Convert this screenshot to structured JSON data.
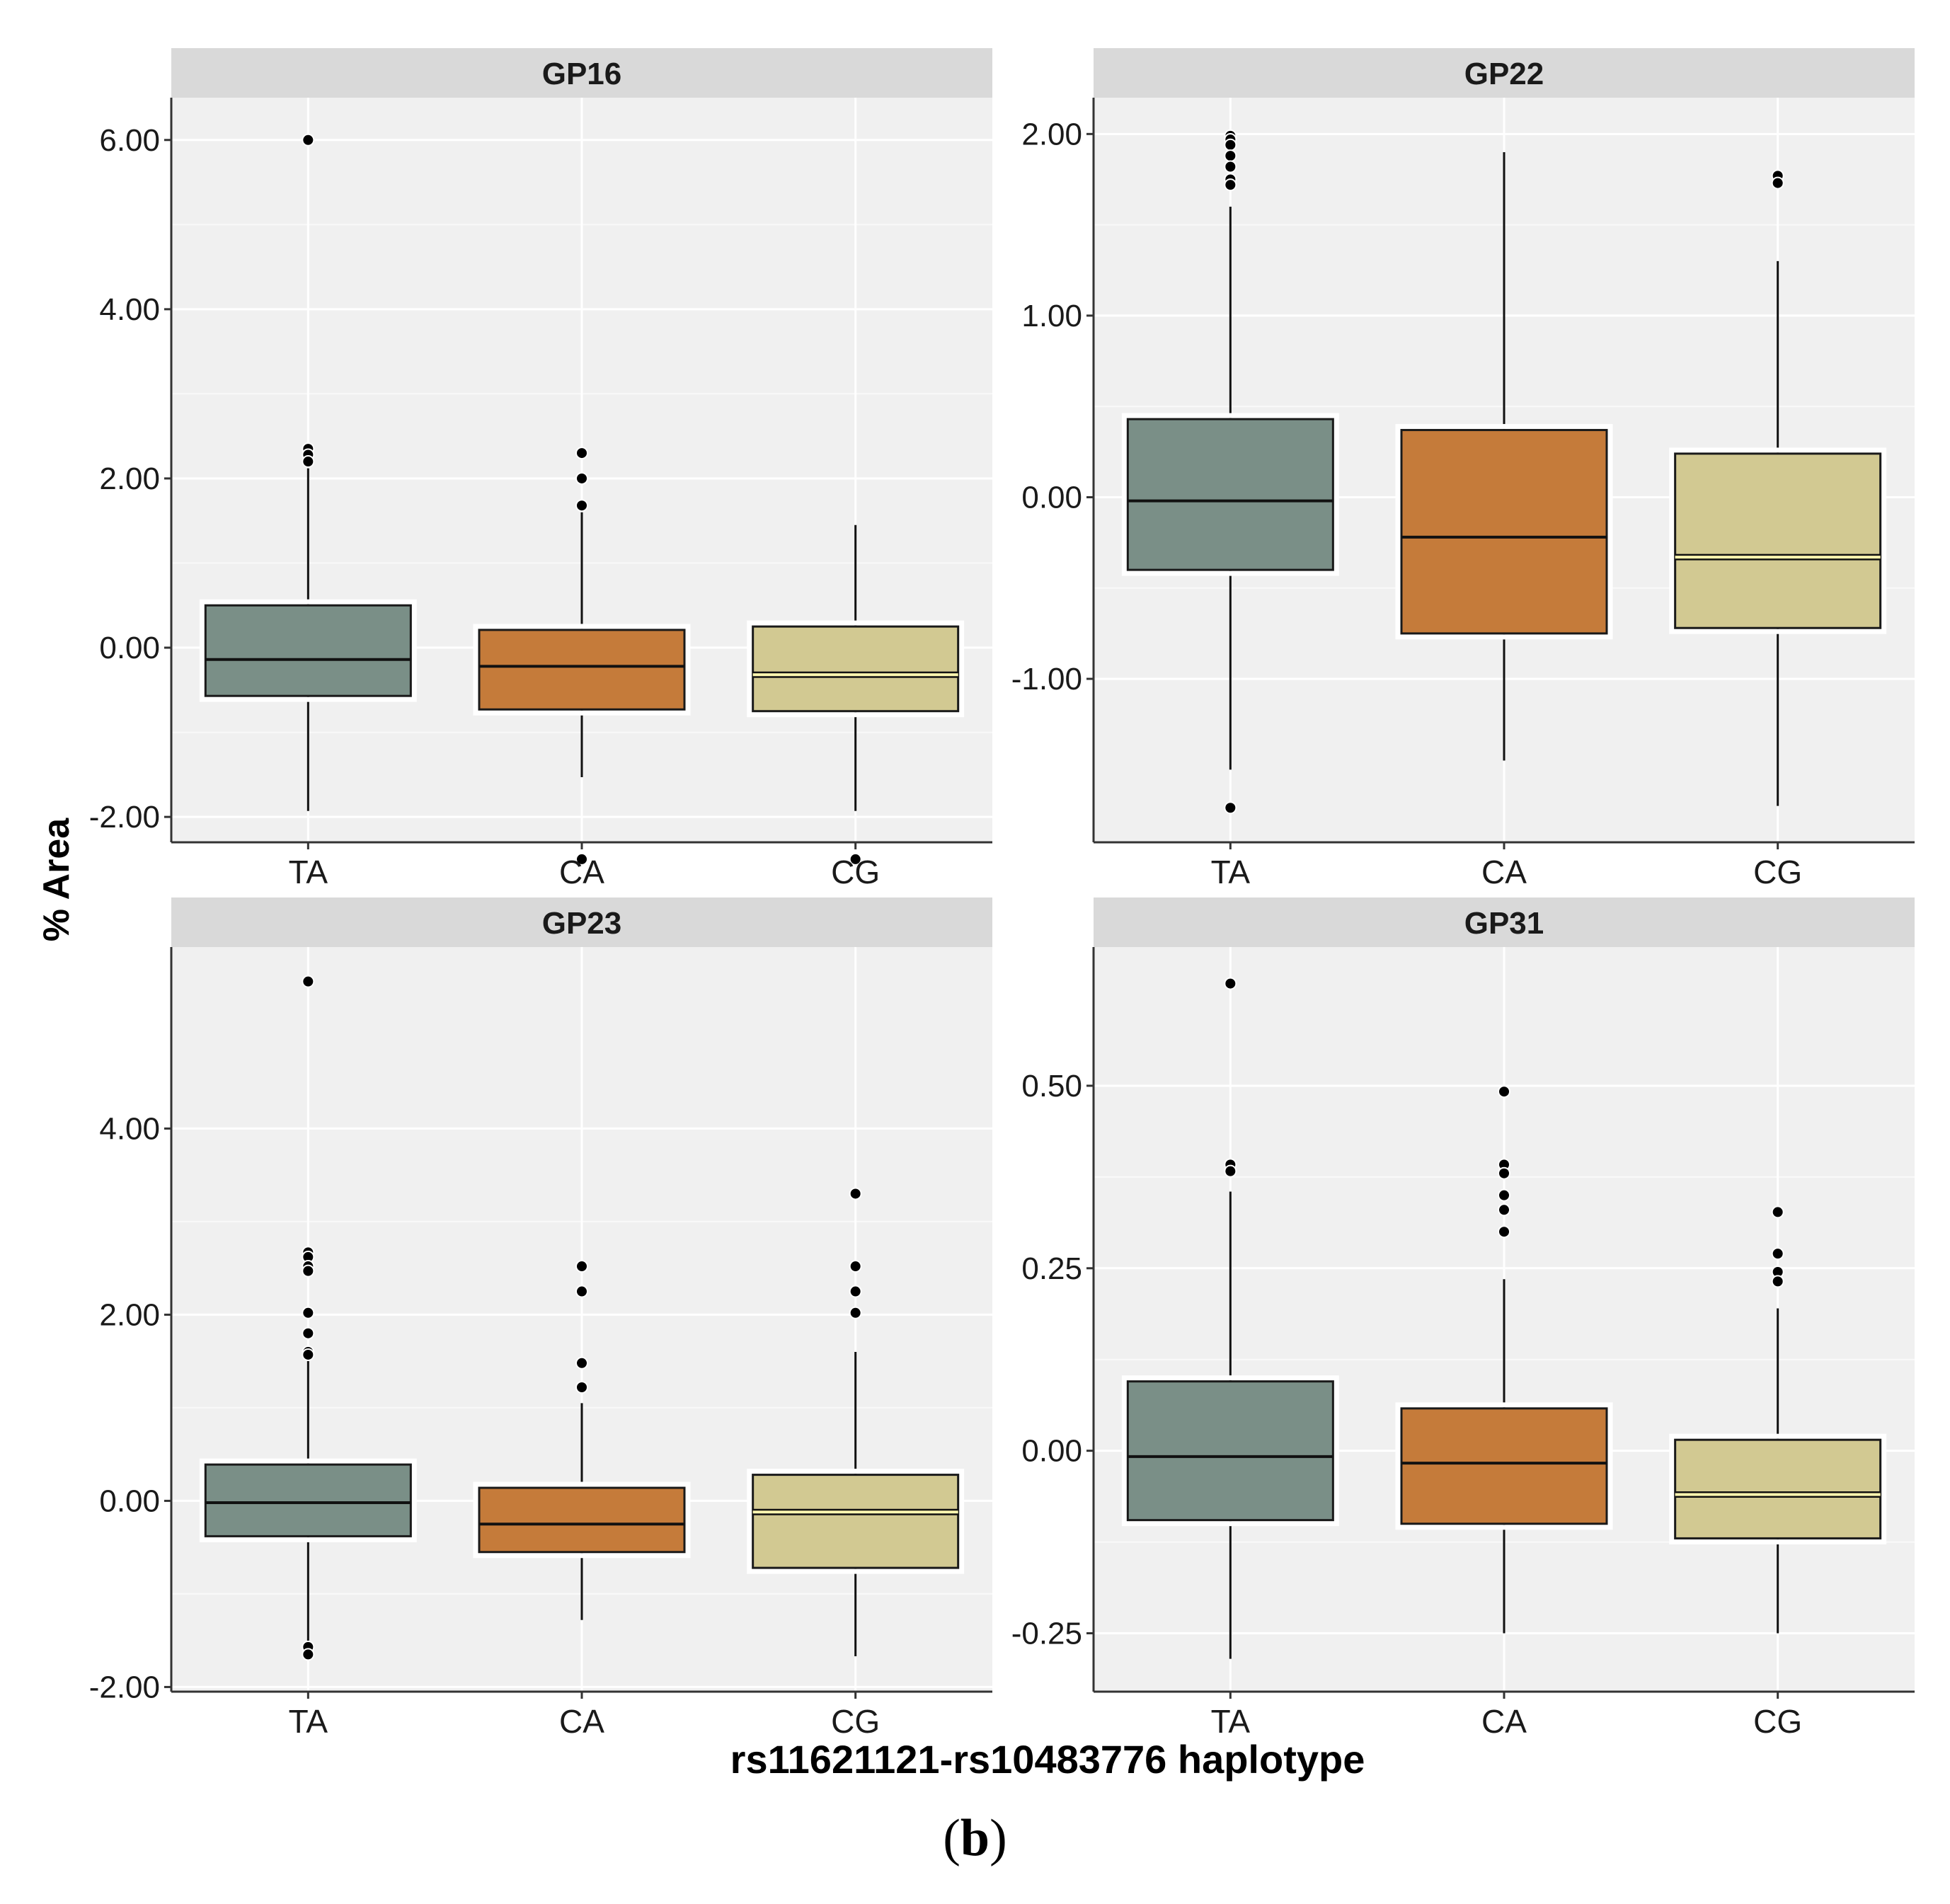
{
  "figure": {
    "ylabel": "% Area",
    "xlabel": "rs11621121-rs10483776 haplotype",
    "label_open": "(",
    "label_letter": "b",
    "label_close": ")"
  },
  "colors": {
    "TA": "#7a8f87",
    "CA": "#c57b3a",
    "CG": "#d2c992",
    "median_TA": "#111111",
    "median_CA": "#111111",
    "median_CG": "#fff7b0"
  },
  "chart_data": [
    {
      "type": "boxplot",
      "title": "GP16",
      "categories": [
        "TA",
        "CA",
        "CG"
      ],
      "ylim": [
        -2.3,
        6.5
      ],
      "yticks": [
        -2,
        0,
        2,
        4,
        6
      ],
      "ytick_labels": [
        "-2.00",
        "0.00",
        "2.00",
        "4.00",
        "6.00"
      ],
      "boxes": [
        {
          "q1": -0.57,
          "median": -0.14,
          "q3": 0.5,
          "whisker_low": -1.93,
          "whisker_high": 2.12,
          "outliers": [
            6.0,
            2.35,
            2.28,
            2.2
          ]
        },
        {
          "q1": -0.73,
          "median": -0.22,
          "q3": 0.21,
          "whisker_low": -1.53,
          "whisker_high": 1.6,
          "outliers": [
            2.3,
            2.0,
            1.68,
            -2.5
          ]
        },
        {
          "q1": -0.75,
          "median": -0.32,
          "q3": 0.25,
          "whisker_low": -1.93,
          "whisker_high": 1.45,
          "outliers": [
            -2.5
          ]
        }
      ]
    },
    {
      "type": "boxplot",
      "title": "GP22",
      "categories": [
        "TA",
        "CA",
        "CG"
      ],
      "ylim": [
        -1.9,
        2.2
      ],
      "yticks": [
        -1,
        0,
        1,
        2
      ],
      "ytick_labels": [
        "-1.00",
        "0.00",
        "1.00",
        "2.00"
      ],
      "boxes": [
        {
          "q1": -0.4,
          "median": -0.02,
          "q3": 0.43,
          "whisker_low": -1.5,
          "whisker_high": 1.6,
          "outliers": [
            1.99,
            1.97,
            1.94,
            1.88,
            1.82,
            1.75,
            1.72,
            -1.71
          ]
        },
        {
          "q1": -0.75,
          "median": -0.22,
          "q3": 0.37,
          "whisker_low": -1.45,
          "whisker_high": 1.9,
          "outliers": []
        },
        {
          "q1": -0.72,
          "median": -0.33,
          "q3": 0.24,
          "whisker_low": -1.7,
          "whisker_high": 1.3,
          "outliers": [
            1.77,
            1.73
          ]
        }
      ]
    },
    {
      "type": "boxplot",
      "title": "GP23",
      "categories": [
        "TA",
        "CA",
        "CG"
      ],
      "ylim": [
        -2.05,
        5.95
      ],
      "yticks": [
        -2,
        0,
        2,
        4
      ],
      "ytick_labels": [
        "-2.00",
        "0.00",
        "2.00",
        "4.00"
      ],
      "boxes": [
        {
          "q1": -0.38,
          "median": -0.02,
          "q3": 0.39,
          "whisker_low": -1.52,
          "whisker_high": 1.52,
          "outliers": [
            5.58,
            2.67,
            2.62,
            2.52,
            2.47,
            2.02,
            1.8,
            1.6,
            1.57,
            -1.57,
            -1.65
          ]
        },
        {
          "q1": -0.55,
          "median": -0.25,
          "q3": 0.14,
          "whisker_low": -1.28,
          "whisker_high": 1.05,
          "outliers": [
            2.52,
            2.25,
            1.48,
            1.22
          ]
        },
        {
          "q1": -0.72,
          "median": -0.12,
          "q3": 0.28,
          "whisker_low": -1.67,
          "whisker_high": 1.6,
          "outliers": [
            3.3,
            2.52,
            2.25,
            2.02
          ]
        }
      ]
    },
    {
      "type": "boxplot",
      "title": "GP31",
      "categories": [
        "TA",
        "CA",
        "CG"
      ],
      "ylim": [
        -0.33,
        0.69
      ],
      "yticks": [
        -0.25,
        0,
        0.25,
        0.5
      ],
      "ytick_labels": [
        "-0.25",
        "0.00",
        "0.25",
        "0.50"
      ],
      "boxes": [
        {
          "q1": -0.095,
          "median": -0.008,
          "q3": 0.095,
          "whisker_low": -0.285,
          "whisker_high": 0.355,
          "outliers": [
            0.64,
            0.392,
            0.383
          ]
        },
        {
          "q1": -0.1,
          "median": -0.017,
          "q3": 0.058,
          "whisker_low": -0.25,
          "whisker_high": 0.235,
          "outliers": [
            0.492,
            0.392,
            0.38,
            0.35,
            0.33,
            0.3
          ]
        },
        {
          "q1": -0.12,
          "median": -0.06,
          "q3": 0.015,
          "whisker_low": -0.25,
          "whisker_high": 0.195,
          "outliers": [
            0.327,
            0.27,
            0.245,
            0.232
          ]
        }
      ]
    }
  ]
}
